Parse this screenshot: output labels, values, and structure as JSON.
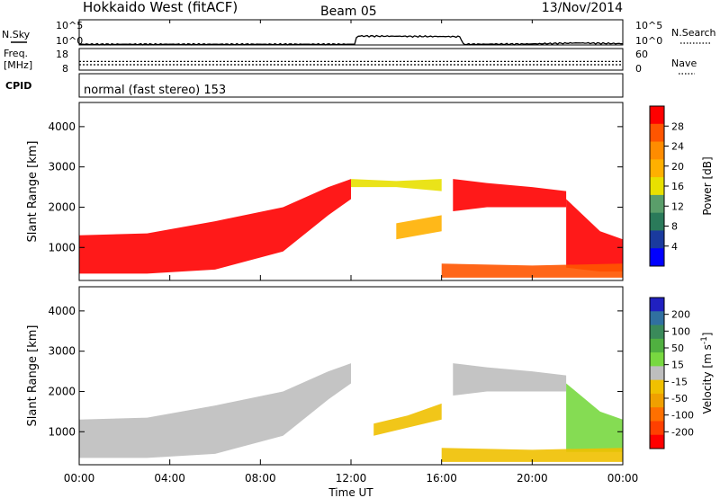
{
  "header": {
    "station": "Hokkaido West (fitACF)",
    "beam": "Beam 05",
    "date": "13/Nov/2014"
  },
  "noise_panel": {
    "left_label": "N.Sky",
    "right_label": "N.Search",
    "left_ticks": [
      "10^5",
      "10^0"
    ],
    "right_ticks": [
      "10^5",
      "10^0"
    ]
  },
  "freq_panel": {
    "left_label_1": "Freq.",
    "left_label_2": "[MHz]",
    "right_label": "Nave",
    "left_ticks": [
      "18",
      "8"
    ],
    "right_ticks": [
      "60",
      "0"
    ]
  },
  "cpid_panel": {
    "label": "CPID",
    "text": "normal (fast stereo) 153"
  },
  "x_axis": {
    "label": "Time UT",
    "tick_labels": [
      "00:00",
      "04:00",
      "08:00",
      "12:00",
      "16:00",
      "20:00",
      "00:00"
    ]
  },
  "power_scale": {
    "label": "Power [dB]",
    "ticks": [
      "28",
      "24",
      "20",
      "16",
      "12",
      "8",
      "4"
    ],
    "colors": [
      "#ff0000",
      "#ff5500",
      "#ff8c00",
      "#ffb000",
      "#e8e000",
      "#5a9e6a",
      "#2a7a5a",
      "#1a3a9e",
      "#0000ff"
    ]
  },
  "velocity_scale": {
    "label": "Velocity [m s",
    "label_sup": "-1",
    "label_end": "]",
    "ticks": [
      "200",
      "100",
      "50",
      "15",
      "-15",
      "-50",
      "-100",
      "-200"
    ],
    "colors": [
      "#2020c0",
      "#3070a0",
      "#3a8a5a",
      "#50b040",
      "#78d840",
      "#bebebe",
      "#f0c000",
      "#f0a000",
      "#ff7000",
      "#ff4000",
      "#ff0000"
    ]
  },
  "chart_data": [
    {
      "type": "line",
      "title": "N.Sky / N.Search",
      "x_range": [
        0,
        24
      ],
      "y_scale": "log",
      "y_range": [
        1,
        100000
      ],
      "series": [
        {
          "x": [
            0,
            6,
            12.2,
            12.3,
            16.8,
            16.9,
            20,
            22,
            24
          ],
          "y": [
            1.4,
            1.4,
            1.4,
            60,
            45,
            1.4,
            1.6,
            2.5,
            1.8
          ]
        }
      ]
    },
    {
      "type": "line",
      "title": "Freq. / Nave",
      "x_range": [
        0,
        24
      ],
      "y_range": [
        8,
        18
      ],
      "series": [
        {
          "x": [
            0,
            24
          ],
          "y": [
            10.5,
            10.5
          ]
        },
        {
          "x": [
            0,
            24
          ],
          "y": [
            12.0,
            12.0
          ]
        }
      ]
    },
    {
      "type": "heatmap",
      "variable": "Power",
      "units": "dB",
      "x_range": [
        0,
        24
      ],
      "y_range": [
        180,
        4600
      ],
      "ylabel": "Slant Range [km]",
      "yticks": [
        1000,
        2000,
        3000,
        4000
      ],
      "color_range": [
        0,
        30
      ],
      "regions": [
        {
          "t": [
            0,
            3,
            6,
            9,
            11,
            12
          ],
          "r_lo": [
            350,
            350,
            450,
            900,
            1800,
            2200
          ],
          "r_hi": [
            1300,
            1350,
            1650,
            2000,
            2500,
            2700
          ],
          "value": 30
        },
        {
          "t": [
            12,
            14,
            16
          ],
          "r_lo": [
            2500,
            2500,
            2400
          ],
          "r_hi": [
            2700,
            2650,
            2700
          ],
          "value": 14
        },
        {
          "t": [
            14,
            15,
            16
          ],
          "r_lo": [
            1200,
            1300,
            1400
          ],
          "r_hi": [
            1600,
            1700,
            1800
          ],
          "value": 18
        },
        {
          "t": [
            16.5,
            18,
            20,
            21.5
          ],
          "r_lo": [
            1900,
            2000,
            2000,
            2000
          ],
          "r_hi": [
            2700,
            2600,
            2500,
            2400
          ],
          "value": 30
        },
        {
          "t": [
            21.5,
            23,
            24
          ],
          "r_lo": [
            500,
            400,
            400
          ],
          "r_hi": [
            2200,
            1400,
            1200
          ],
          "value": 30
        },
        {
          "t": [
            16,
            20,
            24
          ],
          "r_lo": [
            250,
            250,
            250
          ],
          "r_hi": [
            600,
            550,
            600
          ],
          "value": 26
        }
      ]
    },
    {
      "type": "heatmap",
      "variable": "Velocity",
      "units": "m/s",
      "x_range": [
        0,
        24
      ],
      "y_range": [
        180,
        4600
      ],
      "ylabel": "Slant Range [km]",
      "yticks": [
        1000,
        2000,
        3000,
        4000
      ],
      "color_range": [
        -250,
        250
      ],
      "regions": [
        {
          "t": [
            0,
            3,
            6,
            9,
            11,
            12
          ],
          "r_lo": [
            350,
            350,
            450,
            900,
            1800,
            2200
          ],
          "r_hi": [
            1300,
            1350,
            1650,
            2000,
            2500,
            2700
          ],
          "value": 0
        },
        {
          "t": [
            13,
            14.5,
            16
          ],
          "r_lo": [
            900,
            1100,
            1300
          ],
          "r_hi": [
            1200,
            1400,
            1700
          ],
          "value": -60
        },
        {
          "t": [
            16.5,
            18,
            20,
            21.5
          ],
          "r_lo": [
            1900,
            2000,
            2000,
            2000
          ],
          "r_hi": [
            2700,
            2600,
            2500,
            2400
          ],
          "value": 0
        },
        {
          "t": [
            21.5,
            23,
            24
          ],
          "r_lo": [
            500,
            500,
            500
          ],
          "r_hi": [
            2200,
            1500,
            1300
          ],
          "value": 35
        },
        {
          "t": [
            16,
            20,
            24
          ],
          "r_lo": [
            250,
            250,
            250
          ],
          "r_hi": [
            600,
            550,
            600
          ],
          "value": -60
        }
      ]
    }
  ]
}
